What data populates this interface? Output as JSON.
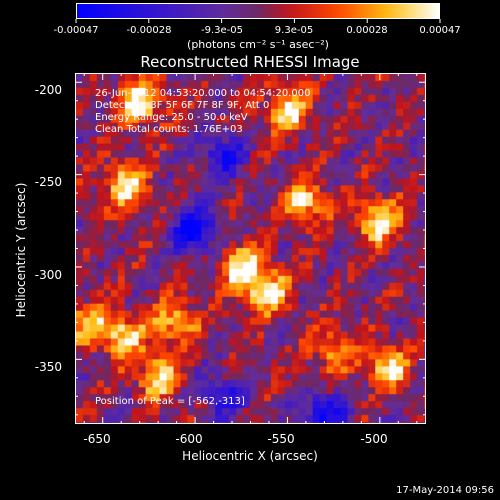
{
  "chart_data": {
    "type": "heatmap",
    "title": "Reconstructed RHESSI Image",
    "xlabel": "Heliocentric X (arcsec)",
    "ylabel": "Heliocentric Y (arcsec)",
    "xlim": [
      -665,
      -475
    ],
    "ylim": [
      -385,
      -195
    ],
    "x_ticks": [
      -650,
      -600,
      -550,
      -500
    ],
    "y_ticks": [
      -200,
      -250,
      -300,
      -350
    ],
    "colorbar": {
      "ticks": [
        "-0.00047",
        "-0.00028",
        "-9.3e-05",
        "9.3e-05",
        "0.00028",
        "0.00047"
      ],
      "range": [
        -0.00047,
        0.00047
      ],
      "unit": "(photons cm⁻² s⁻¹ asec⁻²)"
    },
    "annotations": [
      "26-Jun-2012 04:53:20.000 to 04:54:20.000",
      "Detectors: 3F 5F 6F 7F 8F 9F, Att 0",
      "Energy Range: 25.0 - 50.0 keV",
      "Clean    Total counts: 1.76E+03"
    ],
    "peak_label": "Position of Peak = [-562,-313]",
    "peak": {
      "x": -562,
      "y": -313
    },
    "bright_sources": [
      {
        "x": -630,
        "y": -210,
        "value": 0.00047
      },
      {
        "x": -550,
        "y": -215,
        "value": 0.00045
      },
      {
        "x": -638,
        "y": -255,
        "value": 0.00044
      },
      {
        "x": -540,
        "y": -265,
        "value": 0.0004
      },
      {
        "x": -500,
        "y": -275,
        "value": 0.00045
      },
      {
        "x": -562,
        "y": -313,
        "value": 0.00047
      },
      {
        "x": -575,
        "y": -300,
        "value": 0.0004
      },
      {
        "x": -640,
        "y": -338,
        "value": 0.00042
      },
      {
        "x": -610,
        "y": -330,
        "value": 0.00038
      },
      {
        "x": -620,
        "y": -360,
        "value": 0.0004
      },
      {
        "x": -495,
        "y": -355,
        "value": 0.00038
      },
      {
        "x": -660,
        "y": -330,
        "value": 0.0003
      },
      {
        "x": -525,
        "y": -345,
        "value": 0.0003
      }
    ],
    "dark_sources": [
      {
        "x": -600,
        "y": -280,
        "value": -0.00047
      },
      {
        "x": -585,
        "y": -240,
        "value": -0.00035
      },
      {
        "x": -530,
        "y": -380,
        "value": -0.0004
      },
      {
        "x": -585,
        "y": -370,
        "value": -0.0003
      }
    ],
    "grid": false
  },
  "timestamp": "17-May-2014 09:56"
}
